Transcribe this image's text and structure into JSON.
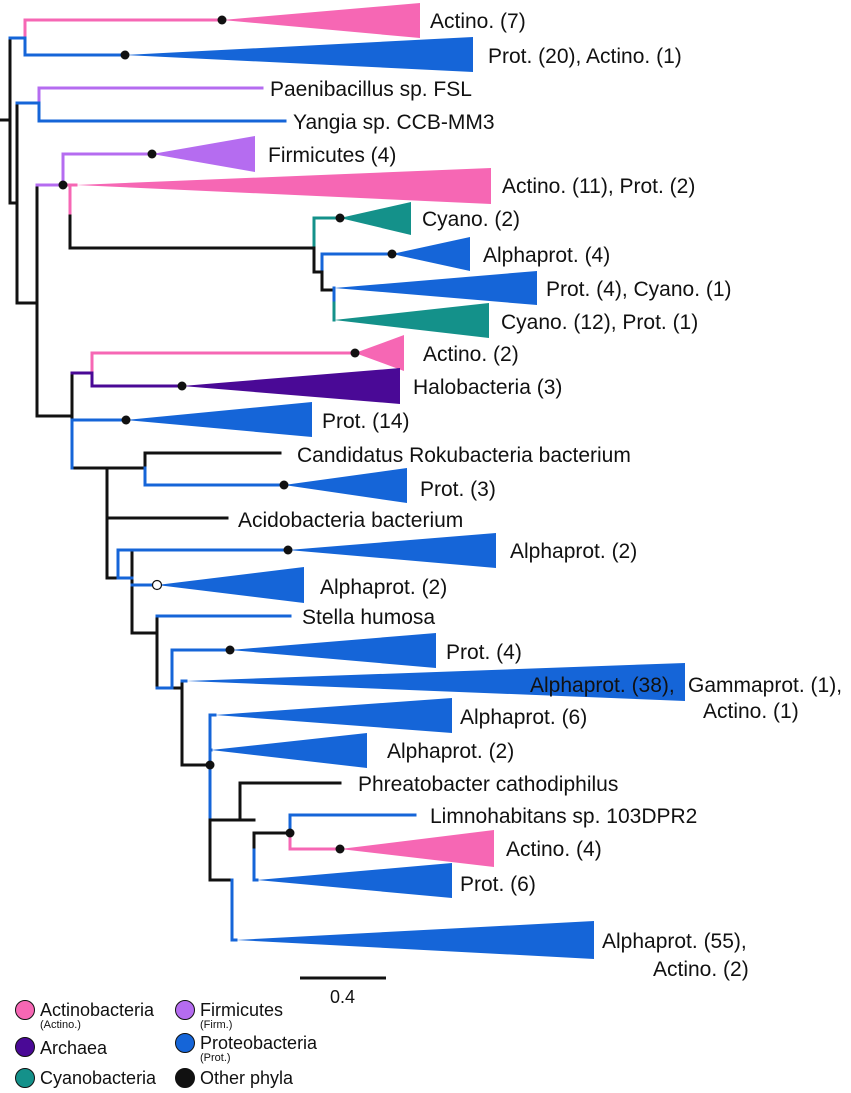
{
  "colors": {
    "actinobacteria": "#f667b4",
    "firmicutes": "#b56cf0",
    "archaea": "#4a0996",
    "cyanobacteria": "#14918a",
    "proteobacteria": "#1565d8",
    "other": "#111111"
  },
  "clades": [
    {
      "id": "actino7",
      "label": "Actino. (7)",
      "group": "actinobacteria"
    },
    {
      "id": "prot20",
      "label": "Prot. (20), Actino. (1)",
      "group": "proteobacteria"
    },
    {
      "id": "paeni",
      "label": "Paenibacillus sp. FSL",
      "group": "firmicutes"
    },
    {
      "id": "yangia",
      "label": "Yangia sp. CCB-MM3",
      "group": "proteobacteria"
    },
    {
      "id": "firm4",
      "label": "Firmicutes (4)",
      "group": "firmicutes"
    },
    {
      "id": "actino11",
      "label": "Actino. (11), Prot. (2)",
      "group": "actinobacteria"
    },
    {
      "id": "cyano2",
      "label": "Cyano. (2)",
      "group": "cyanobacteria"
    },
    {
      "id": "alpha4",
      "label": "Alphaprot. (4)",
      "group": "proteobacteria"
    },
    {
      "id": "prot4cy",
      "label": "Prot. (4), Cyano. (1)",
      "group": "proteobacteria"
    },
    {
      "id": "cyano12",
      "label": "Cyano. (12), Prot. (1)",
      "group": "cyanobacteria"
    },
    {
      "id": "actino2",
      "label": "Actino. (2)",
      "group": "actinobacteria"
    },
    {
      "id": "halo3",
      "label": "Halobacteria (3)",
      "group": "archaea"
    },
    {
      "id": "prot14",
      "label": "Prot. (14)",
      "group": "proteobacteria"
    },
    {
      "id": "rokub",
      "label": "Candidatus Rokubacteria bacterium",
      "group": "other"
    },
    {
      "id": "prot3",
      "label": "Prot. (3)",
      "group": "proteobacteria"
    },
    {
      "id": "acido",
      "label": "Acidobacteria bacterium",
      "group": "other"
    },
    {
      "id": "alpha2a",
      "label": "Alphaprot. (2)",
      "group": "proteobacteria"
    },
    {
      "id": "alpha2b",
      "label": "Alphaprot. (2)",
      "group": "proteobacteria"
    },
    {
      "id": "stella",
      "label": "Stella humosa",
      "group": "proteobacteria"
    },
    {
      "id": "prot4",
      "label": "Prot. (4)",
      "group": "proteobacteria"
    },
    {
      "id": "alpha38",
      "label": "Alphaprot. (38),",
      "label2": "Gammaprot. (1),",
      "label3": "Actino. (1)",
      "group": "proteobacteria"
    },
    {
      "id": "alpha6",
      "label": "Alphaprot. (6)",
      "group": "proteobacteria"
    },
    {
      "id": "alpha2c",
      "label": "Alphaprot. (2)",
      "group": "proteobacteria"
    },
    {
      "id": "phreato",
      "label": "Phreatobacter cathodiphilus",
      "group": "other"
    },
    {
      "id": "limno",
      "label": "Limnohabitans sp. 103DPR2",
      "group": "proteobacteria"
    },
    {
      "id": "actino4",
      "label": "Actino. (4)",
      "group": "actinobacteria"
    },
    {
      "id": "prot6",
      "label": "Prot. (6)",
      "group": "proteobacteria"
    },
    {
      "id": "alpha55",
      "label": "Alphaprot. (55),",
      "label2": "Actino. (2)",
      "group": "proteobacteria"
    }
  ],
  "scale_bar": {
    "label": "0.4"
  },
  "legend": [
    {
      "label": "Actinobacteria",
      "sublabel": "(Actino.)",
      "group": "actinobacteria"
    },
    {
      "label": "Archaea",
      "sublabel": "",
      "group": "archaea"
    },
    {
      "label": "Cyanobacteria",
      "sublabel": "",
      "group": "cyanobacteria"
    },
    {
      "label": "Firmicutes",
      "sublabel": "(Firm.)",
      "group": "firmicutes"
    },
    {
      "label": "Proteobacteria",
      "sublabel": "(Prot.)",
      "group": "proteobacteria"
    },
    {
      "label": "Other phyla",
      "sublabel": "",
      "group": "other"
    }
  ]
}
